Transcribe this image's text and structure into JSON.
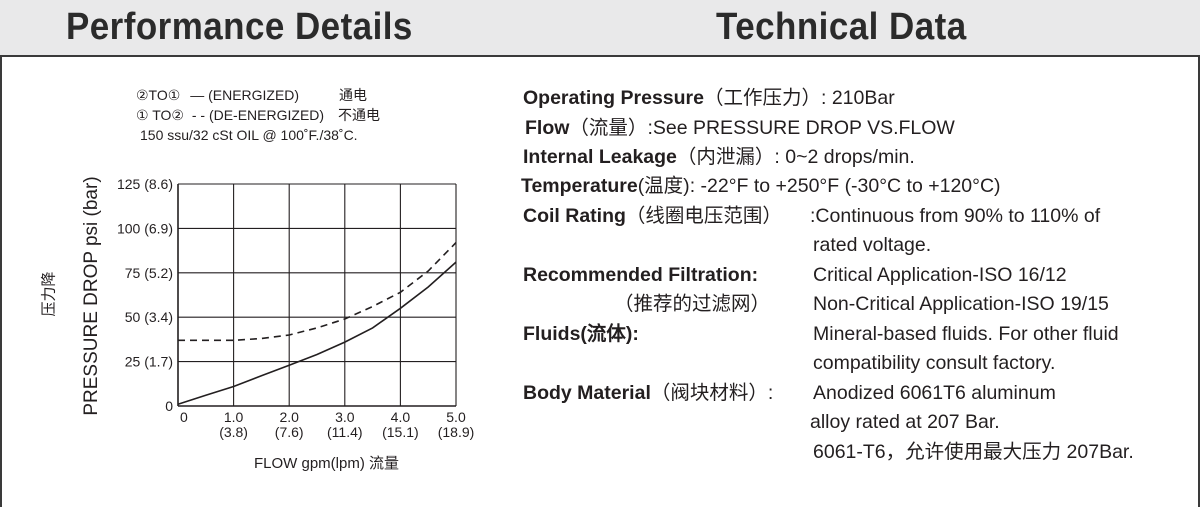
{
  "header": {
    "left_title": "Performance Details",
    "right_title": "Technical Data"
  },
  "legend": {
    "energized_tag": "②TO①",
    "energized_line_symbol": "—",
    "energized_text": "(ENERGIZED)",
    "energized_cn": "通电",
    "deenergized_tag": "① TO②",
    "deenergized_line_symbol": "- -",
    "deenergized_text": "(DE-ENERGIZED)",
    "deenergized_cn": "不通电",
    "oil_note": "150 ssu/32 cSt OIL @ 100˚F./38˚C."
  },
  "chart_data": {
    "type": "line",
    "title": "",
    "xlabel": "FLOW gpm(lpm) 流量",
    "ylabel": "PRESSURE DROP psi (bar)",
    "ylabel_cn": "压力降",
    "xlim": [
      0,
      5
    ],
    "ylim": [
      0,
      125
    ],
    "grid": true,
    "x_ticks": [
      0,
      1,
      2,
      3,
      4,
      5
    ],
    "x_tick_labels": [
      "0",
      "1.0",
      "2.0",
      "3.0",
      "4.0",
      "5.0"
    ],
    "x_tick_sublabels": [
      "",
      "(3.8)",
      "(7.6)",
      "(11.4)",
      "(15.1)",
      "(18.9)"
    ],
    "y_ticks": [
      0,
      25,
      50,
      75,
      100,
      125
    ],
    "y_tick_labels": [
      "0",
      "25 (1.7)",
      "50 (3.4)",
      "75 (5.2)",
      "100 (6.9)",
      "125 (8.6)"
    ],
    "series": [
      {
        "name": "②TO① (ENERGIZED) 通电",
        "style": "solid",
        "x": [
          0,
          0.5,
          1.0,
          1.5,
          2.0,
          2.5,
          3.0,
          3.5,
          4.0,
          4.5,
          5.0
        ],
        "y": [
          1,
          6,
          11,
          17,
          23,
          29,
          36,
          44,
          55,
          67,
          81
        ]
      },
      {
        "name": "① TO② (DE-ENERGIZED) 不通电",
        "style": "dashed",
        "x": [
          0,
          0.5,
          1.0,
          1.5,
          2.0,
          2.5,
          3.0,
          3.5,
          4.0,
          4.5,
          5.0
        ],
        "y": [
          37,
          37,
          37,
          38,
          40,
          44,
          49,
          56,
          64,
          76,
          92
        ]
      }
    ]
  },
  "specs": {
    "pressure_label": "Operating Pressure",
    "pressure_cn": "（工作压力）",
    "pressure_value": ": 210Bar",
    "flow_label": "Flow",
    "flow_cn": "（流量）",
    "flow_value": ":See  PRESSURE DROP VS.FLOW",
    "leakage_label": "Internal Leakage",
    "leakage_cn": "（内泄漏）",
    "leakage_value": ":  0~2 drops/min.",
    "temp_label": "Temperature",
    "temp_cn": "(温度)",
    "temp_value": ": -22°F to +250°F (-30°C to +120°C)",
    "coil_label": "Coil Rating",
    "coil_cn": "（线圈电压范围）",
    "coil_value": ":Continuous from 90% to 110% of",
    "coil_value2": "rated voltage.",
    "filtration_label": "Recommended Filtration:",
    "filtration_value": "Critical Application-ISO 16/12",
    "filtration_cn": "（推荐的过滤网）",
    "filtration_value2": "Non-Critical Application-ISO 19/15",
    "fluids_label": "Fluids",
    "fluids_cn": "(流体):",
    "fluids_value": "Mineral-based fluids. For other fluid",
    "fluids_value2": "compatibility consult factory.",
    "body_label": "Body Material",
    "body_cn": "（阀块材料）:",
    "body_value": "Anodized 6061T6 aluminum",
    "body_value2": "alloy rated at 207 Bar.",
    "body_value3": "6061-T6，允许使用最大压力 207Bar."
  }
}
